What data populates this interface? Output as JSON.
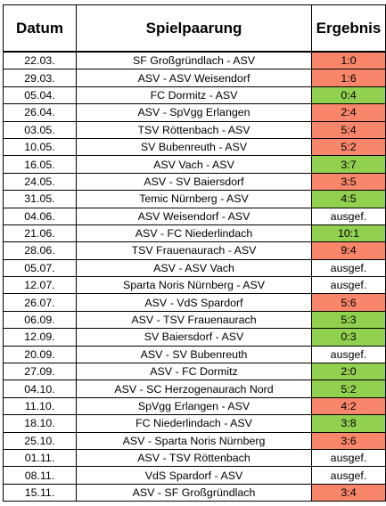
{
  "header": {
    "date": "Datum",
    "match": "Spielpaarung",
    "result": "Ergebnis"
  },
  "colors": {
    "win": "#92d050",
    "loss": "#f8866a",
    "none": "#ffffff"
  },
  "rows": [
    {
      "date": "22.03.",
      "match": "SF Großgründlach - ASV",
      "result": "1:0",
      "status": "loss"
    },
    {
      "date": "29.03.",
      "match": "ASV - ASV Weisendorf",
      "result": "1:6",
      "status": "loss"
    },
    {
      "date": "05.04.",
      "match": "FC Dormitz - ASV",
      "result": "0:4",
      "status": "win"
    },
    {
      "date": "26.04.",
      "match": "ASV - SpVgg Erlangen",
      "result": "2:4",
      "status": "loss"
    },
    {
      "date": "03.05.",
      "match": "TSV Röttenbach - ASV",
      "result": "5:4",
      "status": "loss"
    },
    {
      "date": "10.05.",
      "match": "SV Bubenreuth - ASV",
      "result": "5:2",
      "status": "loss"
    },
    {
      "date": "16.05.",
      "match": "ASV Vach - ASV",
      "result": "3:7",
      "status": "win"
    },
    {
      "date": "24.05.",
      "match": "ASV - SV Baiersdorf",
      "result": "3:5",
      "status": "loss"
    },
    {
      "date": "31.05.",
      "match": "Temic Nürnberg - ASV",
      "result": "4:5",
      "status": "win"
    },
    {
      "date": "04.06.",
      "match": "ASV Weisendorf - ASV",
      "result": "ausgef.",
      "status": "none"
    },
    {
      "date": "21.06.",
      "match": "ASV - FC Niederlindach",
      "result": "10:1",
      "status": "win"
    },
    {
      "date": "28.06.",
      "match": "TSV Frauenaurach - ASV",
      "result": "9:4",
      "status": "loss"
    },
    {
      "date": "05.07.",
      "match": "ASV - ASV Vach",
      "result": "ausgef.",
      "status": "none"
    },
    {
      "date": "12.07.",
      "match": "Sparta Noris Nürnberg - ASV",
      "result": "ausgef.",
      "status": "none"
    },
    {
      "date": "26.07.",
      "match": "ASV - VdS Spardorf",
      "result": "5:6",
      "status": "loss"
    },
    {
      "date": "06.09.",
      "match": "ASV - TSV Frauenaurach",
      "result": "5:3",
      "status": "win"
    },
    {
      "date": "12.09.",
      "match": "SV Baiersdorf - ASV",
      "result": "0:3",
      "status": "win"
    },
    {
      "date": "20.09.",
      "match": "ASV - SV Bubenreuth",
      "result": "ausgef.",
      "status": "none"
    },
    {
      "date": "27.09.",
      "match": "ASV - FC Dormitz",
      "result": "2:0",
      "status": "win"
    },
    {
      "date": "04.10.",
      "match": "ASV - SC Herzogenaurach Nord",
      "result": "5:2",
      "status": "win"
    },
    {
      "date": "11.10.",
      "match": "SpVgg Erlangen - ASV",
      "result": "4:2",
      "status": "loss"
    },
    {
      "date": "18.10.",
      "match": "FC Niederlindach - ASV",
      "result": "3:8",
      "status": "win"
    },
    {
      "date": "25.10.",
      "match": "ASV - Sparta Noris Nürnberg",
      "result": "3:6",
      "status": "loss"
    },
    {
      "date": "01.11.",
      "match": "ASV - TSV Röttenbach",
      "result": "ausgef.",
      "status": "none"
    },
    {
      "date": "08.11.",
      "match": "VdS Spardorf - ASV",
      "result": "ausgef.",
      "status": "none"
    },
    {
      "date": "15.11.",
      "match": "ASV - SF Großgründlach",
      "result": "3:4",
      "status": "loss"
    }
  ]
}
